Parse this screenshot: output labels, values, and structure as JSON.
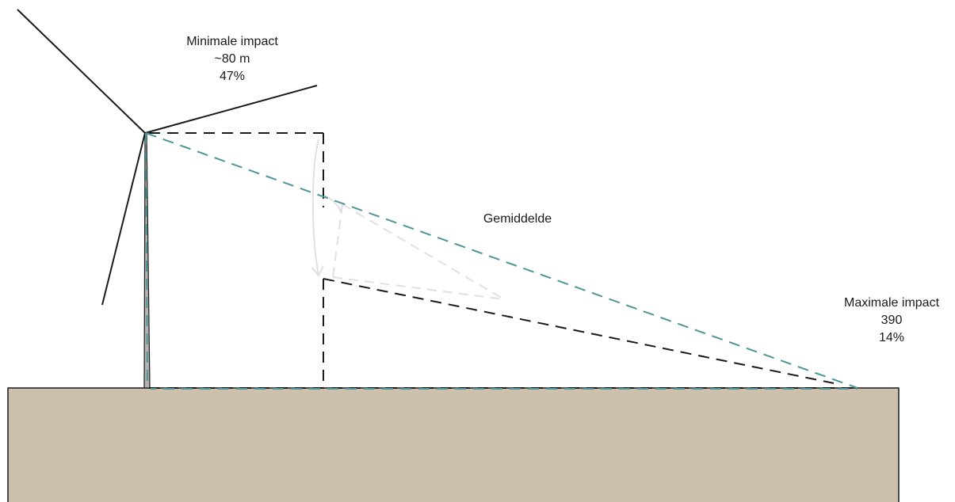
{
  "labels": {
    "minimal": {
      "title": "Minimale impact",
      "distance": "~80 m",
      "percentage": "47%"
    },
    "average": {
      "title": "Gemiddelde"
    },
    "maximal": {
      "title": "Maximale impact",
      "distance": "390",
      "percentage": "14%"
    }
  },
  "colors": {
    "ground_fill": "#cdc0ad",
    "outline": "#1a1a1a",
    "max_shadow_line": "#4e9597",
    "faint_lines": "#e0e0e0"
  }
}
